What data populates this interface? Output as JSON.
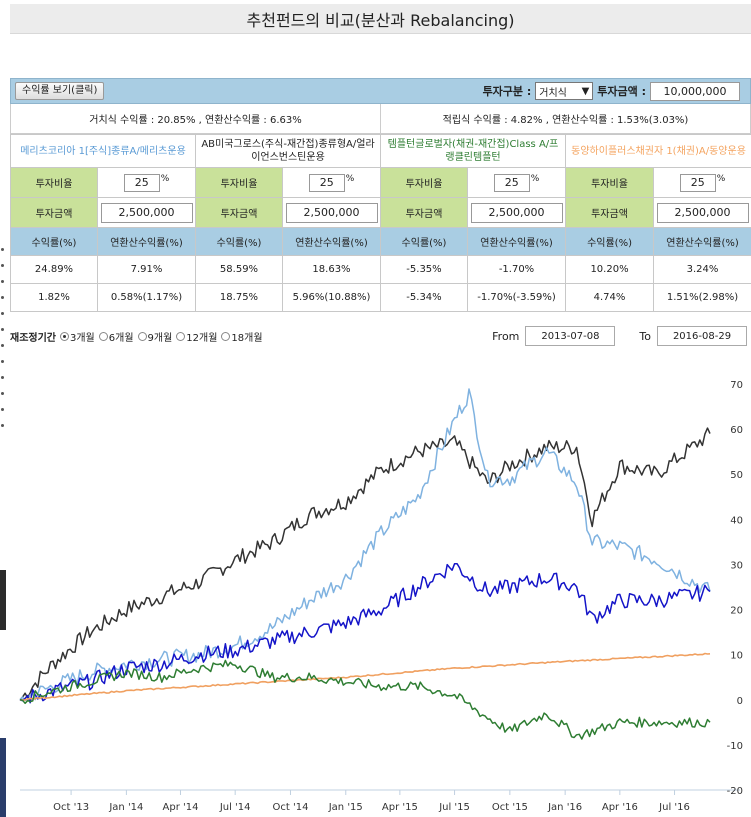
{
  "page_title": "추천펀드의 비교(분산과 Rebalancing)",
  "controls": {
    "view_button": "수익률 보기(클릭)",
    "invest_type_label": "투자구분 :",
    "invest_type_value": "거치식",
    "invest_type_arrow": "▼",
    "invest_amount_label": "투자금액 :",
    "invest_amount_value": "10,000,000"
  },
  "summary": {
    "lump_sum": "거치식 수익률 : 20.85% , 연환산수익률 : 6.63%",
    "installment": "적립식 수익률 : 4.82% , 연환산수익률 : 1.53%(3.03%)"
  },
  "labels": {
    "ratio": "투자비율",
    "amount": "투자금액",
    "return": "수익률(%)",
    "annual_return": "연환산수익률(%)",
    "pct": "%"
  },
  "funds": [
    {
      "name": "메리츠코리아 1[주식]종류A/메리츠운용",
      "ratio": "25",
      "amount": "2,500,000",
      "lump_return": "24.89%",
      "lump_annual": "7.91%",
      "inst_return": "1.82%",
      "inst_annual": "0.58%(1.17%)"
    },
    {
      "name": "AB미국그로스(주식-재간접)종류형A/얼라이언스번스틴운용",
      "ratio": "25",
      "amount": "2,500,000",
      "lump_return": "58.59%",
      "lump_annual": "18.63%",
      "inst_return": "18.75%",
      "inst_annual": "5.96%(10.88%)"
    },
    {
      "name": "템플턴글로벌자(채권-재간접)Class A/프랭클린템플턴",
      "ratio": "25",
      "amount": "2,500,000",
      "lump_return": "-5.35%",
      "lump_annual": "-1.70%",
      "inst_return": "-5.34%",
      "inst_annual": "-1.70%(-3.59%)"
    },
    {
      "name": "동양하이플러스채권자 1(채권)A/동양운용",
      "ratio": "25",
      "amount": "2,500,000",
      "lump_return": "10.20%",
      "lump_annual": "3.24%",
      "inst_return": "4.74%",
      "inst_annual": "1.51%(2.98%)"
    }
  ],
  "rebalance": {
    "label": "재조정기간",
    "options": [
      "3개월",
      "6개월",
      "9개월",
      "12개월",
      "18개월"
    ],
    "selected": "3개월",
    "from_label": "From",
    "from_value": "2013-07-08",
    "to_label": "To",
    "to_value": "2016-08-29"
  },
  "chart_data": {
    "type": "line",
    "x_start": "2013-07-08",
    "x_end": "2016-08-29",
    "x_tick_labels": [
      "Oct '13",
      "Jan '14",
      "Apr '14",
      "Jul '14",
      "Oct '14",
      "Jan '15",
      "Apr '15",
      "Jul '15",
      "Oct '15",
      "Jan '16",
      "Apr '16",
      "Jul '16"
    ],
    "x_tick_dates": [
      "2013-10-01",
      "2014-01-01",
      "2014-04-01",
      "2014-07-01",
      "2014-10-01",
      "2015-01-01",
      "2015-04-01",
      "2015-07-01",
      "2015-10-01",
      "2016-01-01",
      "2016-04-01",
      "2016-07-01"
    ],
    "y_ticks": [
      -20,
      -10,
      0,
      10,
      20,
      30,
      40,
      50,
      60,
      70
    ],
    "ylim": [
      -20,
      72
    ],
    "grid": false,
    "series": [
      {
        "color": "#333333",
        "dates": [
          "2013-07-08",
          "2013-09-01",
          "2013-11-01",
          "2014-01-01",
          "2014-03-01",
          "2014-05-01",
          "2014-07-01",
          "2014-09-01",
          "2014-11-01",
          "2015-01-01",
          "2015-03-01",
          "2015-05-01",
          "2015-07-01",
          "2015-08-25",
          "2015-10-01",
          "2015-12-01",
          "2016-01-20",
          "2016-02-15",
          "2016-04-01",
          "2016-06-01",
          "2016-08-29"
        ],
        "values": [
          0,
          8,
          15,
          20,
          23,
          26,
          31,
          35,
          41,
          44,
          51,
          55,
          57,
          48,
          52,
          56,
          56,
          40,
          52,
          50,
          59
        ]
      },
      {
        "color": "#7fb2e0",
        "dates": [
          "2013-07-08",
          "2013-09-01",
          "2013-11-01",
          "2014-01-01",
          "2014-03-01",
          "2014-05-01",
          "2014-07-01",
          "2014-09-01",
          "2014-11-01",
          "2015-01-01",
          "2015-03-01",
          "2015-05-01",
          "2015-07-01",
          "2015-07-25",
          "2015-08-25",
          "2015-10-01",
          "2015-12-01",
          "2016-01-20",
          "2016-02-15",
          "2016-04-01",
          "2016-06-01",
          "2016-08-29"
        ],
        "values": [
          0,
          3,
          6,
          8,
          9,
          10,
          12,
          16,
          22,
          27,
          37,
          45,
          62,
          68,
          49,
          49,
          55,
          48,
          35,
          34,
          31,
          24
        ]
      },
      {
        "color": "#1414c8",
        "dates": [
          "2013-07-08",
          "2013-09-01",
          "2013-11-01",
          "2014-01-01",
          "2014-03-01",
          "2014-05-01",
          "2014-07-01",
          "2014-09-01",
          "2014-11-01",
          "2015-01-01",
          "2015-03-01",
          "2015-05-01",
          "2015-07-01",
          "2015-08-25",
          "2015-10-01",
          "2015-12-01",
          "2016-01-20",
          "2016-02-15",
          "2016-04-01",
          "2016-06-01",
          "2016-08-29"
        ],
        "values": [
          0,
          2,
          4,
          7,
          8,
          10,
          11,
          13,
          15,
          17,
          20,
          25,
          30,
          24,
          25,
          27,
          25,
          18,
          22,
          22,
          24
        ]
      },
      {
        "color": "#f0a060",
        "dates": [
          "2013-07-08",
          "2014-01-01",
          "2014-07-01",
          "2015-01-01",
          "2015-07-01",
          "2016-01-01",
          "2016-08-29"
        ],
        "values": [
          0,
          2,
          3.5,
          5,
          7,
          8.5,
          10.2
        ]
      },
      {
        "color": "#2e7d32",
        "dates": [
          "2013-07-08",
          "2013-09-01",
          "2013-11-01",
          "2014-01-01",
          "2014-03-01",
          "2014-05-01",
          "2014-07-01",
          "2014-09-01",
          "2014-11-01",
          "2015-01-01",
          "2015-03-01",
          "2015-05-01",
          "2015-07-01",
          "2015-08-25",
          "2015-10-01",
          "2015-12-01",
          "2016-01-20",
          "2016-02-15",
          "2016-04-01",
          "2016-06-01",
          "2016-08-29"
        ],
        "values": [
          0,
          2,
          4,
          6,
          5,
          7,
          8,
          5,
          5,
          4,
          3,
          3,
          1,
          -4,
          -7,
          -3,
          -8,
          -7,
          -5,
          -5,
          -5
        ]
      }
    ]
  }
}
